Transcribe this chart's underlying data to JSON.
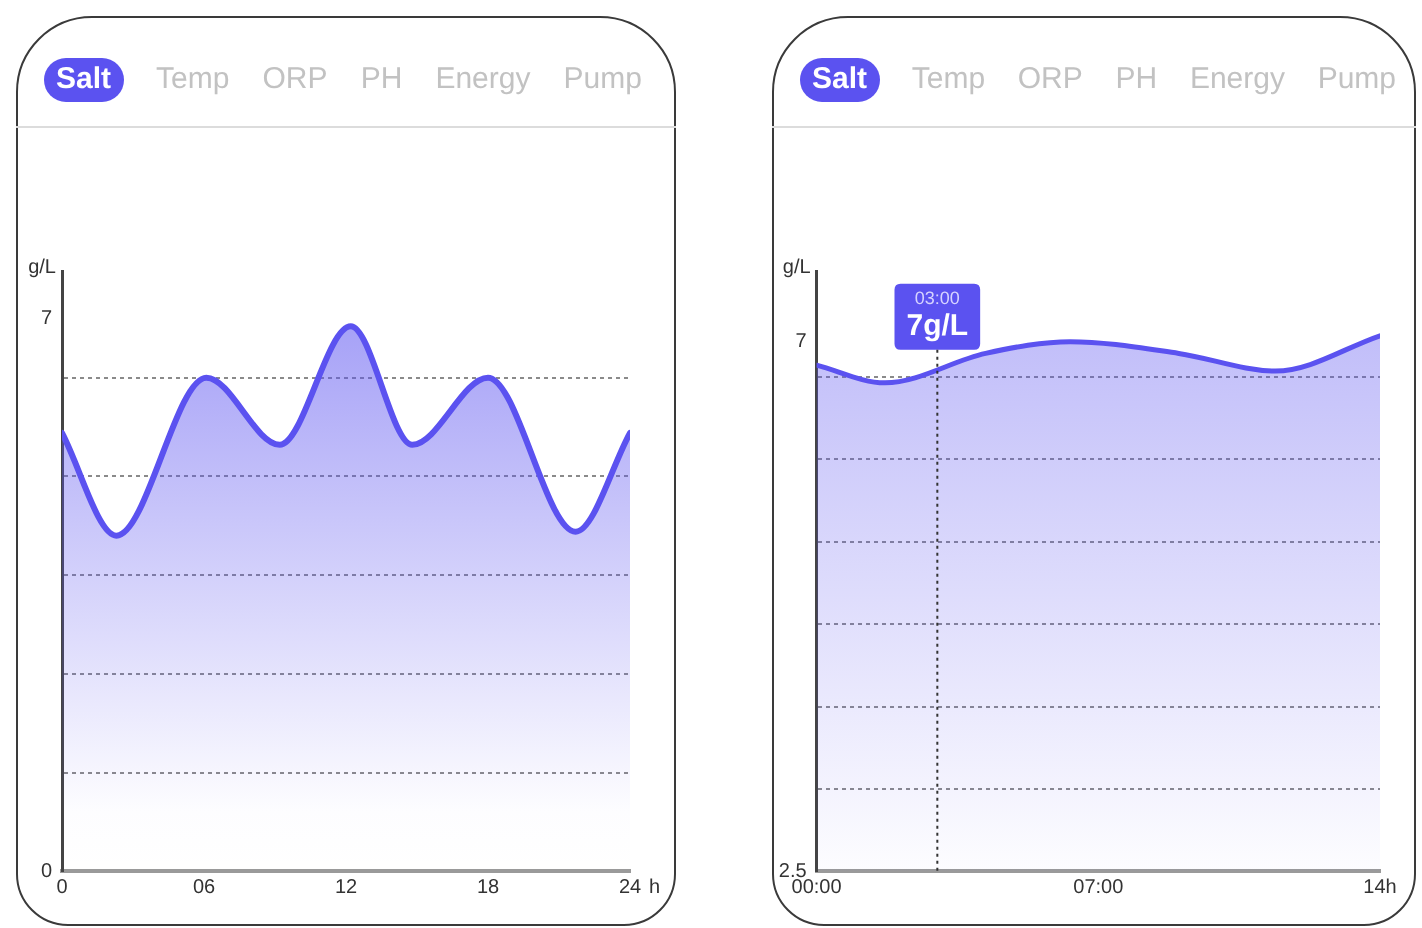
{
  "chart_data": [
    {
      "type": "area",
      "ylabel": "g/L",
      "xlabel": "h",
      "annotations": [
        "Salt",
        "Temp",
        "ORP",
        "PH",
        "Energy",
        "Pump"
      ],
      "x": [
        0,
        2.3,
        6.1,
        9.2,
        12.2,
        14.8,
        18,
        21.7,
        24
      ],
      "values": [
        5.55,
        4.25,
        6.25,
        5.4,
        6.9,
        5.4,
        6.25,
        4.3,
        5.55
      ],
      "color": "#5b52f0",
      "xlim": [
        0,
        24
      ],
      "xticks": [
        0,
        {
          "value": 6,
          "label": "06"
        },
        12,
        18,
        24
      ],
      "ylim": [
        0,
        7.6
      ],
      "yticks": [
        0,
        {
          "value": 1.25,
          "label": null
        },
        {
          "value": 2.5,
          "label": null
        },
        {
          "value": 3.75,
          "label": null
        },
        {
          "value": 5,
          "label": null
        },
        {
          "value": 6.25,
          "label": null
        },
        7
      ],
      "grid": "y",
      "legend": false,
      "marker": "none"
    },
    {
      "type": "area",
      "ylabel": "g/L",
      "annotations": [
        "Salt",
        "Temp",
        "ORP",
        "PH",
        "Energy",
        "Pump",
        {
          "text": "7g/L",
          "x": 3,
          "y": 7
        }
      ],
      "ref_lines": [
        {
          "axis": "x",
          "value": 3,
          "label": "03:00",
          "color": "#333333",
          "line_style": "dotted"
        }
      ],
      "x": [
        0,
        1.7,
        4.2,
        6.3,
        9,
        11.4,
        14
      ],
      "values": [
        6.8,
        6.65,
        6.9,
        7,
        6.9,
        6.75,
        7.05
      ],
      "color": "#5b52f0",
      "xlim": [
        0,
        14
      ],
      "xticks": [
        {
          "value": 0,
          "label": "00:00"
        },
        {
          "value": 7,
          "label": "07:00"
        },
        {
          "value": 14,
          "label": "14h"
        }
      ],
      "ylim": [
        2.5,
        7.6
      ],
      "yticks": [
        2.5,
        {
          "value": 3.2,
          "label": null
        },
        {
          "value": 3.9,
          "label": null
        },
        {
          "value": 4.6,
          "label": null
        },
        {
          "value": 5.3,
          "label": null
        },
        {
          "value": 6,
          "label": null
        },
        {
          "value": 6.7,
          "label": null
        },
        7
      ],
      "grid": "y",
      "legend": false,
      "marker": "none"
    }
  ]
}
